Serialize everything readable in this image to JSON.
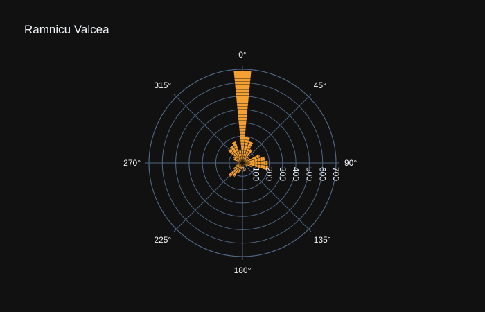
{
  "chart_data": {
    "type": "barpolar",
    "title": "Ramnicu Valcea",
    "angular_ticks": [
      "0°",
      "45°",
      "90°",
      "135°",
      "180°",
      "225°",
      "270°",
      "315°"
    ],
    "radial_ticks": [
      "0",
      "100",
      "200",
      "300",
      "400",
      "500",
      "600",
      "700"
    ],
    "radial_range": [
      0,
      700
    ],
    "angular_direction": "clockwise",
    "rotation": "0° at top",
    "bar_color": "#f5a033",
    "bar_outline_color": "#111111",
    "grid_color": "#506784",
    "bars": [
      {
        "theta": 0,
        "r": 690
      },
      {
        "theta": 11.25,
        "r": 200
      },
      {
        "theta": 22.5,
        "r": 170
      },
      {
        "theta": 33.75,
        "r": 120
      },
      {
        "theta": 45,
        "r": 60
      },
      {
        "theta": 56.25,
        "r": 60
      },
      {
        "theta": 67.5,
        "r": 140
      },
      {
        "theta": 78.75,
        "r": 170
      },
      {
        "theta": 90,
        "r": 190
      },
      {
        "theta": 101.25,
        "r": 195
      },
      {
        "theta": 112.5,
        "r": 80
      },
      {
        "theta": 123.75,
        "r": 40
      },
      {
        "theta": 135,
        "r": 30
      },
      {
        "theta": 146.25,
        "r": 20
      },
      {
        "theta": 157.5,
        "r": 30
      },
      {
        "theta": 168.75,
        "r": 60
      },
      {
        "theta": 180,
        "r": 40
      },
      {
        "theta": 191.25,
        "r": 50
      },
      {
        "theta": 202.5,
        "r": 80
      },
      {
        "theta": 213.75,
        "r": 120
      },
      {
        "theta": 225,
        "r": 140
      },
      {
        "theta": 236.25,
        "r": 80
      },
      {
        "theta": 247.5,
        "r": 50
      },
      {
        "theta": 258.75,
        "r": 40
      },
      {
        "theta": 270,
        "r": 40
      },
      {
        "theta": 281.25,
        "r": 40
      },
      {
        "theta": 292.5,
        "r": 70
      },
      {
        "theta": 303.75,
        "r": 80
      },
      {
        "theta": 315,
        "r": 140
      },
      {
        "theta": 326.25,
        "r": 150
      },
      {
        "theta": 337.5,
        "r": 170
      },
      {
        "theta": 348.75,
        "r": 100
      }
    ]
  }
}
